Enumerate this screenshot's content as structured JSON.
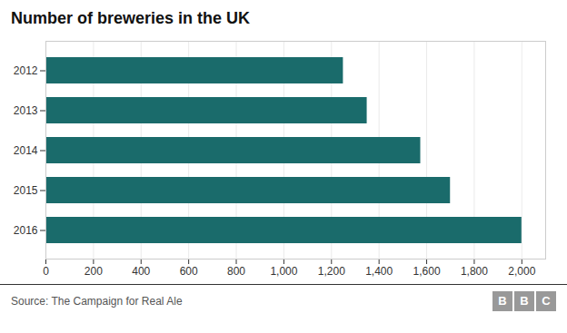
{
  "chart_data": {
    "type": "bar",
    "title": "Number of breweries in the UK",
    "orientation": "horizontal",
    "categories": [
      "2012",
      "2013",
      "2014",
      "2015",
      "2016"
    ],
    "values": [
      1250,
      1350,
      1575,
      1700,
      2000
    ],
    "color": "#1a6b6b",
    "xlim": [
      0,
      2100
    ],
    "xticks": [
      0,
      200,
      400,
      600,
      800,
      {
        "value": 1000,
        "label": "1,000"
      },
      {
        "value": 1200,
        "label": "1,200"
      },
      {
        "value": 1400,
        "label": "1,400"
      },
      {
        "value": 1600,
        "label": "1,600"
      },
      {
        "value": 1800,
        "label": "1,800"
      },
      {
        "value": 2000,
        "label": "2,000"
      }
    ],
    "grid": true,
    "annotations": [
      "Source: The Campaign for Real Ale",
      "BBC"
    ]
  }
}
